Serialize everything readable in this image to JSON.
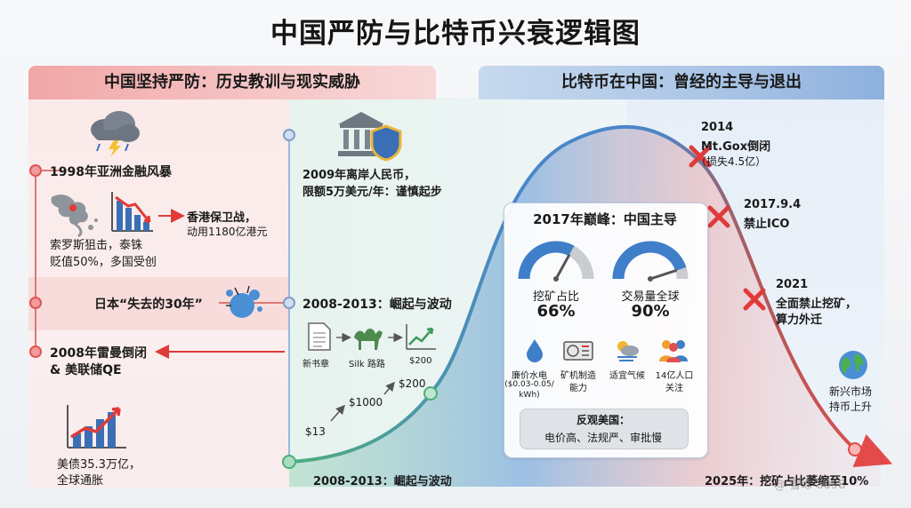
{
  "title": "中国严防与比特币兴衰逻辑图",
  "left_header": "中国坚持严防：历史教训与现实威胁",
  "right_header": "比特币在中国：曾经的主导与退出",
  "left": {
    "e1998": "1998年亚洲金融风暴",
    "soros_l1": "索罗斯狙击，泰铢",
    "soros_l2": "贬值50%，多国受创",
    "hk_l1": "香港保卫战，",
    "hk_l2": "动用1180亿港元",
    "japan": "日本“失去的30年”",
    "lehman_l1": "2008年雷曼倒闭",
    "lehman_l2": "& 美联储QE",
    "debt_l1": "美债35.3万亿，",
    "debt_l2": "全球通胀"
  },
  "middle": {
    "rmb_l1": "2009年离岸人民币，",
    "rmb_l2": "限额5万美元/年：谨慎起步",
    "rise_title": "2008-2013：崛起与波动",
    "flow_whitepaper": "新书章",
    "flow_silk": "Silk 路路",
    "flow_price": "$200",
    "bottom_label": "2008-2013：崛起与波动"
  },
  "price_labels": [
    "$13",
    "$1000",
    "$200"
  ],
  "peak": {
    "title": "2017年巅峰：中国主导",
    "g1_label": "挖矿占比",
    "g1_value_text": "66%",
    "g1_value": 66,
    "g2_label": "交易量全球",
    "g2_value_text": "90%",
    "g2_value": 90,
    "f1_l1": "廉价水电",
    "f1_l2": "($0.03-0.05/",
    "f1_l3": "kWh)",
    "f2_l1": "矿机制造",
    "f2_l2": "能力",
    "f3": "适宜气候",
    "f4_l1": "14亿人口",
    "f4_l2": "关注",
    "contrast_title": "反观美国：",
    "contrast_body": "电价高、法规严、审批慢"
  },
  "events": {
    "mtgox_year": "2014",
    "mtgox_name": "Mt.Gox倒闭",
    "mtgox_loss": "（损失4.5亿）",
    "ico_date": "2017.9.4",
    "ico_name": "禁止ICO",
    "mining_year": "2021",
    "mining_l1": "全面禁止挖矿，",
    "mining_l2": "算力外迁",
    "emerging_l1": "新兴市场",
    "emerging_l2": "持币上升",
    "final": "2025年：挖矿占比萎缩至10%"
  },
  "watermark": "@ 雪球 8098",
  "colors": {
    "red": "#e03a3a",
    "gauge_blue": "#3f7fc9",
    "gauge_gray": "#c9ccd1",
    "curve_green": "#4caf7a",
    "curve_blue": "#4a86c8",
    "curve_red": "#e34a4a"
  }
}
